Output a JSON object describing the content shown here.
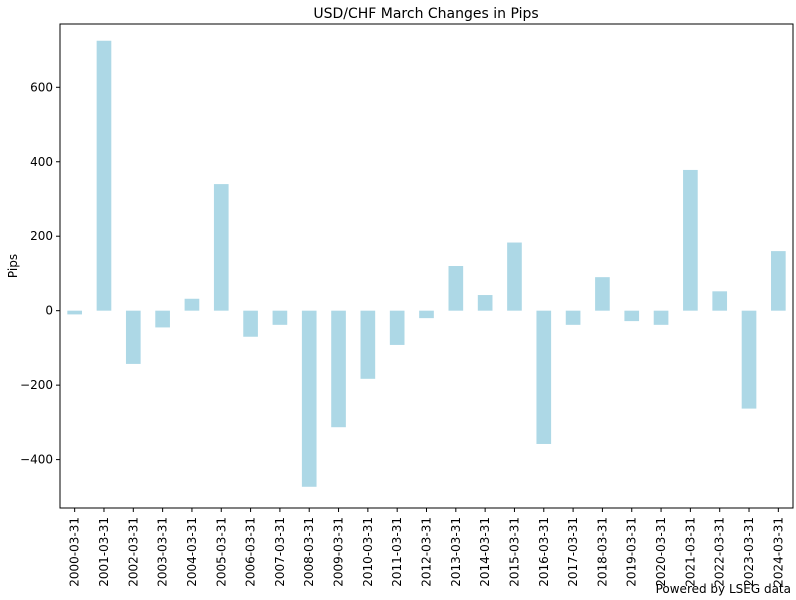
{
  "chart_data": {
    "type": "bar",
    "title": "USD/CHF March Changes in Pips",
    "xlabel": "",
    "ylabel": "Pips",
    "ylim": [
      -530,
      770
    ],
    "yticks": [
      -400,
      -200,
      0,
      200,
      400,
      600
    ],
    "ytick_labels": [
      "−400",
      "−200",
      "0",
      "200",
      "400",
      "600"
    ],
    "bar_color": "#add8e6",
    "grid": false,
    "categories": [
      "2000-03-31",
      "2001-03-31",
      "2002-03-31",
      "2003-03-31",
      "2004-03-31",
      "2005-03-31",
      "2006-03-31",
      "2007-03-31",
      "2008-03-31",
      "2009-03-31",
      "2010-03-31",
      "2011-03-31",
      "2012-03-31",
      "2013-03-31",
      "2014-03-31",
      "2015-03-31",
      "2016-03-31",
      "2017-03-31",
      "2018-03-31",
      "2019-03-31",
      "2020-03-31",
      "2021-03-31",
      "2022-03-31",
      "2023-03-31",
      "2024-03-31"
    ],
    "values": [
      -10,
      725,
      -143,
      -45,
      32,
      340,
      -70,
      -38,
      -473,
      -313,
      -183,
      -92,
      -20,
      120,
      42,
      183,
      -358,
      -38,
      90,
      -28,
      -38,
      378,
      52,
      -263,
      160
    ]
  },
  "footer": {
    "credit": "Powered by LSEG data"
  }
}
